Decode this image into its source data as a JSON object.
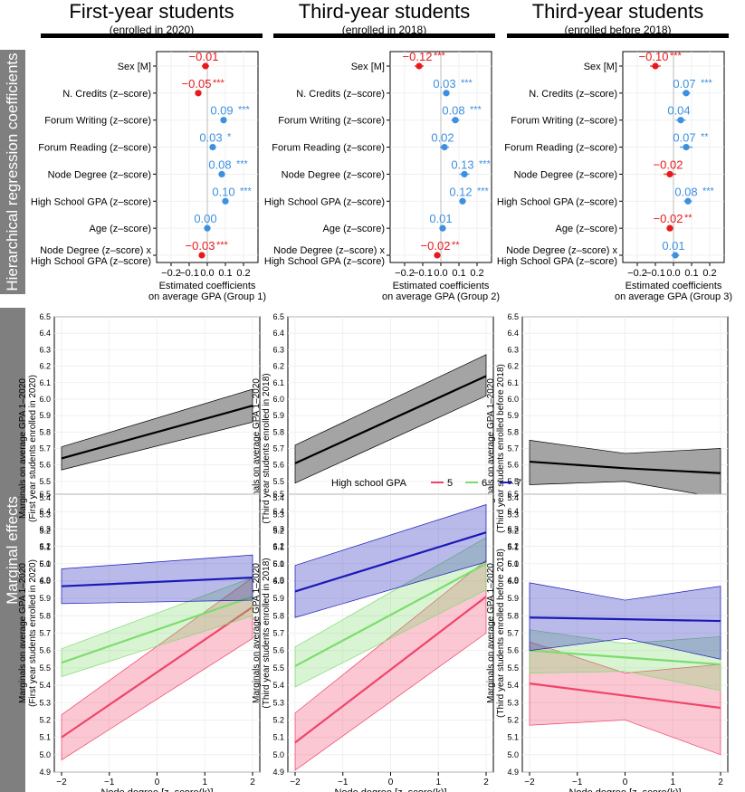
{
  "bands": {
    "coef_label": "Hierarchical regression coefficients",
    "marginal_label": "Marginal effects"
  },
  "columns": [
    {
      "title": "First-year students",
      "subtitle": "(enrolled in 2020)"
    },
    {
      "title": "Third-year students",
      "subtitle": "(enrolled in 2018)"
    },
    {
      "title": "Third-year students",
      "subtitle": "(enrolled before 2018)"
    }
  ],
  "colors": {
    "positive": "#3d8fe0",
    "negative": "#e8191c",
    "gpa5": "#f0446b",
    "gpa6": "#7ddc6e",
    "gpa7": "#1a1ab8",
    "band_gray": "#9a9a9a"
  },
  "chart_data": [
    {
      "type": "coefficient-forest",
      "group": "Group 1",
      "xlabel": "Estimated coefficients\non average GPA (Group 1)",
      "xlim": [
        -0.28,
        0.28
      ],
      "xticks": [
        -0.2,
        -0.1,
        0.0,
        0.1,
        0.2
      ],
      "xtick_labels": [
        "−0.2",
        "−0.1",
        "0.0",
        "0.1",
        "0.2"
      ],
      "terms": [
        "Sex [M]",
        "N. Credits (z–score)",
        "Forum Writing (z–score)",
        "Forum Reading (z–score)",
        "Node Degree (z–score)",
        "High School GPA (z–score)",
        "Age (z–score)",
        "Node Degree (z–score) x\nHigh School GPA (z–score)"
      ],
      "estimates": [
        -0.01,
        -0.05,
        0.09,
        0.03,
        0.08,
        0.1,
        0.0,
        -0.03
      ],
      "labels": [
        "−0.01",
        "−0.05",
        "0.09",
        "0.03",
        "0.08",
        "0.10",
        "0.00",
        "−0.03"
      ],
      "stars": [
        "",
        "***",
        "***",
        "*",
        "***",
        "***",
        "",
        "***"
      ],
      "ci_halfwidth": [
        0.02,
        0.012,
        0.012,
        0.015,
        0.015,
        0.012,
        0.01,
        0.012
      ]
    },
    {
      "type": "coefficient-forest",
      "group": "Group 2",
      "xlabel": "Estimated coefficients\non average GPA (Group 2)",
      "xlim": [
        -0.28,
        0.28
      ],
      "xticks": [
        -0.2,
        -0.1,
        0.0,
        0.1,
        0.2
      ],
      "xtick_labels": [
        "−0.2",
        "−0.1",
        "0.0",
        "0.1",
        "0.2"
      ],
      "terms": [
        "Sex [M]",
        "N. Credits (z–score)",
        "Forum Writing (z–score)",
        "Forum Reading (z–score)",
        "Node Degree (z–score)",
        "High School GPA (z–score)",
        "Age (z–score)",
        "Node Degree (z–score) x\nHigh School GPA (z–score)"
      ],
      "estimates": [
        -0.12,
        0.03,
        0.08,
        0.02,
        0.13,
        0.12,
        0.01,
        -0.02
      ],
      "labels": [
        "−0.12",
        "0.03",
        "0.08",
        "0.02",
        "0.13",
        "0.12",
        "0.01",
        "−0.02"
      ],
      "stars": [
        "***",
        "***",
        "***",
        "",
        "***",
        "***",
        "",
        "**"
      ],
      "ci_halfwidth": [
        0.025,
        0.018,
        0.022,
        0.025,
        0.028,
        0.018,
        0.015,
        0.018
      ]
    },
    {
      "type": "coefficient-forest",
      "group": "Group 3",
      "xlabel": "Estimated coefficients\non average GPA (Group 3)",
      "xlim": [
        -0.28,
        0.28
      ],
      "xticks": [
        -0.2,
        -0.1,
        0.0,
        0.1,
        0.2
      ],
      "xtick_labels": [
        "−0.2",
        "−0.1",
        "0.0",
        "0.1",
        "0.2"
      ],
      "terms": [
        "Sex [M]",
        "N. Credits (z–score)",
        "Forum Writing (z–score)",
        "Forum Reading (z–score)",
        "Node Degree (z–score)",
        "High School GPA (z–score)",
        "Age (z–score)",
        "Node Degree (z–score) x\nHigh School GPA (z–score)"
      ],
      "estimates": [
        -0.1,
        0.07,
        0.04,
        0.07,
        -0.02,
        0.08,
        -0.02,
        0.01
      ],
      "labels": [
        "−0.10",
        "0.07",
        "0.04",
        "0.07",
        "−0.02",
        "0.08",
        "−0.02",
        "0.01"
      ],
      "stars": [
        "***",
        "***",
        "",
        "**",
        "",
        "***",
        "**",
        ""
      ],
      "ci_halfwidth": [
        0.03,
        0.022,
        0.028,
        0.035,
        0.035,
        0.022,
        0.018,
        0.022
      ]
    },
    {
      "type": "line",
      "panel": "marginal-overall-1",
      "ylabel": "Marginals on average GPA 1–2020\n(First year students enrolled in 2020)",
      "xlabel": "Node degree [z–score(k)]",
      "xlim": [
        -2,
        2
      ],
      "ylim": [
        4.9,
        6.5
      ],
      "xticks": [
        -2,
        -1,
        0,
        1,
        2
      ],
      "xtick_labels": [
        "−2",
        "−1",
        "0",
        "1",
        "2"
      ],
      "yticks": [
        4.9,
        5.0,
        5.1,
        5.2,
        5.3,
        5.4,
        5.5,
        5.6,
        5.7,
        5.8,
        5.9,
        6.0,
        6.1,
        6.2,
        6.3,
        6.4,
        6.5
      ],
      "ytick_labels": [
        "4.9",
        "5.0",
        "5.1",
        "5.2",
        "5.3",
        "5.4",
        "5.5",
        "5.6",
        "5.7",
        "5.8",
        "5.9",
        "6.0",
        "6.1",
        "6.2",
        "6.3",
        "6.4",
        "6.5"
      ],
      "series": [
        {
          "name": "overall",
          "x": [
            -2,
            2
          ],
          "y": [
            5.64,
            5.96
          ],
          "lower": [
            5.57,
            5.86
          ],
          "upper": [
            5.71,
            6.06
          ]
        }
      ]
    },
    {
      "type": "line",
      "panel": "marginal-overall-2",
      "ylabel": "Marginals on average GPA 1–2020\n(Third year students enrolled in 2018)",
      "xlabel": "Node degree [z–score(k)]",
      "xlim": [
        -2,
        2
      ],
      "ylim": [
        4.9,
        6.5
      ],
      "xticks": [
        -2,
        -1,
        0,
        1,
        2
      ],
      "xtick_labels": [
        "−2",
        "−1",
        "0",
        "1",
        "2"
      ],
      "yticks": [
        4.9,
        5.0,
        5.1,
        5.2,
        5.3,
        5.4,
        5.5,
        5.6,
        5.7,
        5.8,
        5.9,
        6.0,
        6.1,
        6.2,
        6.3,
        6.4,
        6.5
      ],
      "ytick_labels": [
        "4.9",
        "5.0",
        "5.1",
        "5.2",
        "5.3",
        "5.4",
        "5.5",
        "5.6",
        "5.7",
        "5.8",
        "5.9",
        "6.0",
        "6.1",
        "6.2",
        "6.3",
        "6.4",
        "6.5"
      ],
      "series": [
        {
          "name": "overall",
          "x": [
            -2,
            2
          ],
          "y": [
            5.61,
            6.14
          ],
          "lower": [
            5.49,
            6.02
          ],
          "upper": [
            5.72,
            6.27
          ]
        }
      ]
    },
    {
      "type": "line",
      "panel": "marginal-overall-3",
      "ylabel": "Marginals on average GPA 1–2020\n(Third year students enrolled before 2018)",
      "xlabel": "Node degree [z–score(k)]",
      "xlim": [
        -2,
        2
      ],
      "ylim": [
        4.9,
        6.5
      ],
      "xticks": [
        -2,
        -1,
        0,
        1,
        2
      ],
      "xtick_labels": [
        "−2",
        "−1",
        "0",
        "1",
        "2"
      ],
      "yticks": [
        4.9,
        5.0,
        5.1,
        5.2,
        5.3,
        5.4,
        5.5,
        5.6,
        5.7,
        5.8,
        5.9,
        6.0,
        6.1,
        6.2,
        6.3,
        6.4,
        6.5
      ],
      "ytick_labels": [
        "4.9",
        "5.0",
        "5.1",
        "5.2",
        "5.3",
        "5.4",
        "5.5",
        "5.6",
        "5.7",
        "5.8",
        "5.9",
        "6.0",
        "6.1",
        "6.2",
        "6.3",
        "6.4",
        "6.5"
      ],
      "series": [
        {
          "name": "overall",
          "x": [
            -2,
            0,
            2
          ],
          "y": [
            5.62,
            5.58,
            5.55
          ],
          "lower": [
            5.48,
            5.5,
            5.4
          ],
          "upper": [
            5.75,
            5.67,
            5.7
          ]
        }
      ]
    },
    {
      "type": "line",
      "panel": "marginal-gpa-1",
      "ylabel": "Marginals on average GPA 1–2020\n(First year students enrolled in 2020)",
      "xlabel": "Node degree [z–score(k)]",
      "xlim": [
        -2,
        2
      ],
      "ylim": [
        4.9,
        6.5
      ],
      "xticks": [
        -2,
        -1,
        0,
        1,
        2
      ],
      "xtick_labels": [
        "−2",
        "−1",
        "0",
        "1",
        "2"
      ],
      "yticks": [
        4.9,
        5.0,
        5.1,
        5.2,
        5.3,
        5.4,
        5.5,
        5.6,
        5.7,
        5.8,
        5.9,
        6.0,
        6.1,
        6.2,
        6.3,
        6.4,
        6.5
      ],
      "ytick_labels": [
        "4.9",
        "5.0",
        "5.1",
        "5.2",
        "5.3",
        "5.4",
        "5.5",
        "5.6",
        "5.7",
        "5.8",
        "5.9",
        "6.0",
        "6.1",
        "6.2",
        "6.3",
        "6.4",
        "6.5"
      ],
      "legend_title": "High school GPA",
      "series": [
        {
          "name": "5",
          "x": [
            -2,
            2
          ],
          "y": [
            5.1,
            5.85
          ],
          "lower": [
            4.97,
            5.67
          ],
          "upper": [
            5.23,
            6.02
          ]
        },
        {
          "name": "6",
          "x": [
            -2,
            2
          ],
          "y": [
            5.53,
            5.91
          ],
          "lower": [
            5.45,
            5.8
          ],
          "upper": [
            5.61,
            6.02
          ]
        },
        {
          "name": "7",
          "x": [
            -2,
            2
          ],
          "y": [
            5.97,
            6.02
          ],
          "lower": [
            5.87,
            5.89
          ],
          "upper": [
            6.07,
            6.15
          ]
        }
      ]
    },
    {
      "type": "line",
      "panel": "marginal-gpa-2",
      "ylabel": "Marginals on average GPA 1–2020\n(Third year students enrolled in 2018)",
      "xlabel": "Node degree [z–score(k)]",
      "xlim": [
        -2,
        2
      ],
      "ylim": [
        4.9,
        6.5
      ],
      "xticks": [
        -2,
        -1,
        0,
        1,
        2
      ],
      "xtick_labels": [
        "−2",
        "−1",
        "0",
        "1",
        "2"
      ],
      "yticks": [
        4.9,
        5.0,
        5.1,
        5.2,
        5.3,
        5.4,
        5.5,
        5.6,
        5.7,
        5.8,
        5.9,
        6.0,
        6.1,
        6.2,
        6.3,
        6.4,
        6.5
      ],
      "ytick_labels": [
        "4.9",
        "5.0",
        "5.1",
        "5.2",
        "5.3",
        "5.4",
        "5.5",
        "5.6",
        "5.7",
        "5.8",
        "5.9",
        "6.0",
        "6.1",
        "6.2",
        "6.3",
        "6.4",
        "6.5"
      ],
      "legend": {
        "title": "High school GPA",
        "items": [
          {
            "label": "5",
            "color": "#f0446b"
          },
          {
            "label": "6",
            "color": "#7ddc6e"
          },
          {
            "label": "7",
            "color": "#1a1ab8"
          }
        ]
      },
      "series": [
        {
          "name": "5",
          "x": [
            -2,
            2
          ],
          "y": [
            5.07,
            5.91
          ],
          "lower": [
            4.91,
            5.7
          ],
          "upper": [
            5.24,
            6.12
          ]
        },
        {
          "name": "6",
          "x": [
            -2,
            2
          ],
          "y": [
            5.51,
            6.1
          ],
          "lower": [
            5.39,
            5.95
          ],
          "upper": [
            5.62,
            6.25
          ]
        },
        {
          "name": "7",
          "x": [
            -2,
            2
          ],
          "y": [
            5.94,
            6.28
          ],
          "lower": [
            5.79,
            6.11
          ],
          "upper": [
            6.09,
            6.44
          ]
        }
      ]
    },
    {
      "type": "line",
      "panel": "marginal-gpa-3",
      "ylabel": "Marginals on average GPA 1–2020\n(Third year students enrolled before 2018)",
      "xlabel": "Node degree [z–score(k)]",
      "xlim": [
        -2,
        2
      ],
      "ylim": [
        4.9,
        6.5
      ],
      "xticks": [
        -2,
        -1,
        0,
        1,
        2
      ],
      "xtick_labels": [
        "−2",
        "−1",
        "0",
        "1",
        "2"
      ],
      "yticks": [
        4.9,
        5.0,
        5.1,
        5.2,
        5.3,
        5.4,
        5.5,
        5.6,
        5.7,
        5.8,
        5.9,
        6.0,
        6.1,
        6.2,
        6.3,
        6.4,
        6.5
      ],
      "ytick_labels": [
        "4.9",
        "5.0",
        "5.1",
        "5.2",
        "5.3",
        "5.4",
        "5.5",
        "5.6",
        "5.7",
        "5.8",
        "5.9",
        "6.0",
        "6.1",
        "6.2",
        "6.3",
        "6.4",
        "6.5"
      ],
      "series": [
        {
          "name": "5",
          "x": [
            -2,
            0,
            2
          ],
          "y": [
            5.41,
            5.34,
            5.27
          ],
          "lower": [
            5.17,
            5.2,
            5.0
          ],
          "upper": [
            5.65,
            5.47,
            5.52
          ]
        },
        {
          "name": "6",
          "x": [
            -2,
            0,
            2
          ],
          "y": [
            5.6,
            5.56,
            5.52
          ],
          "lower": [
            5.47,
            5.48,
            5.37
          ],
          "upper": [
            5.72,
            5.64,
            5.68
          ]
        },
        {
          "name": "7",
          "x": [
            -2,
            0,
            2
          ],
          "y": [
            5.79,
            5.78,
            5.77
          ],
          "lower": [
            5.6,
            5.67,
            5.55
          ],
          "upper": [
            5.99,
            5.89,
            5.97
          ]
        }
      ]
    }
  ]
}
